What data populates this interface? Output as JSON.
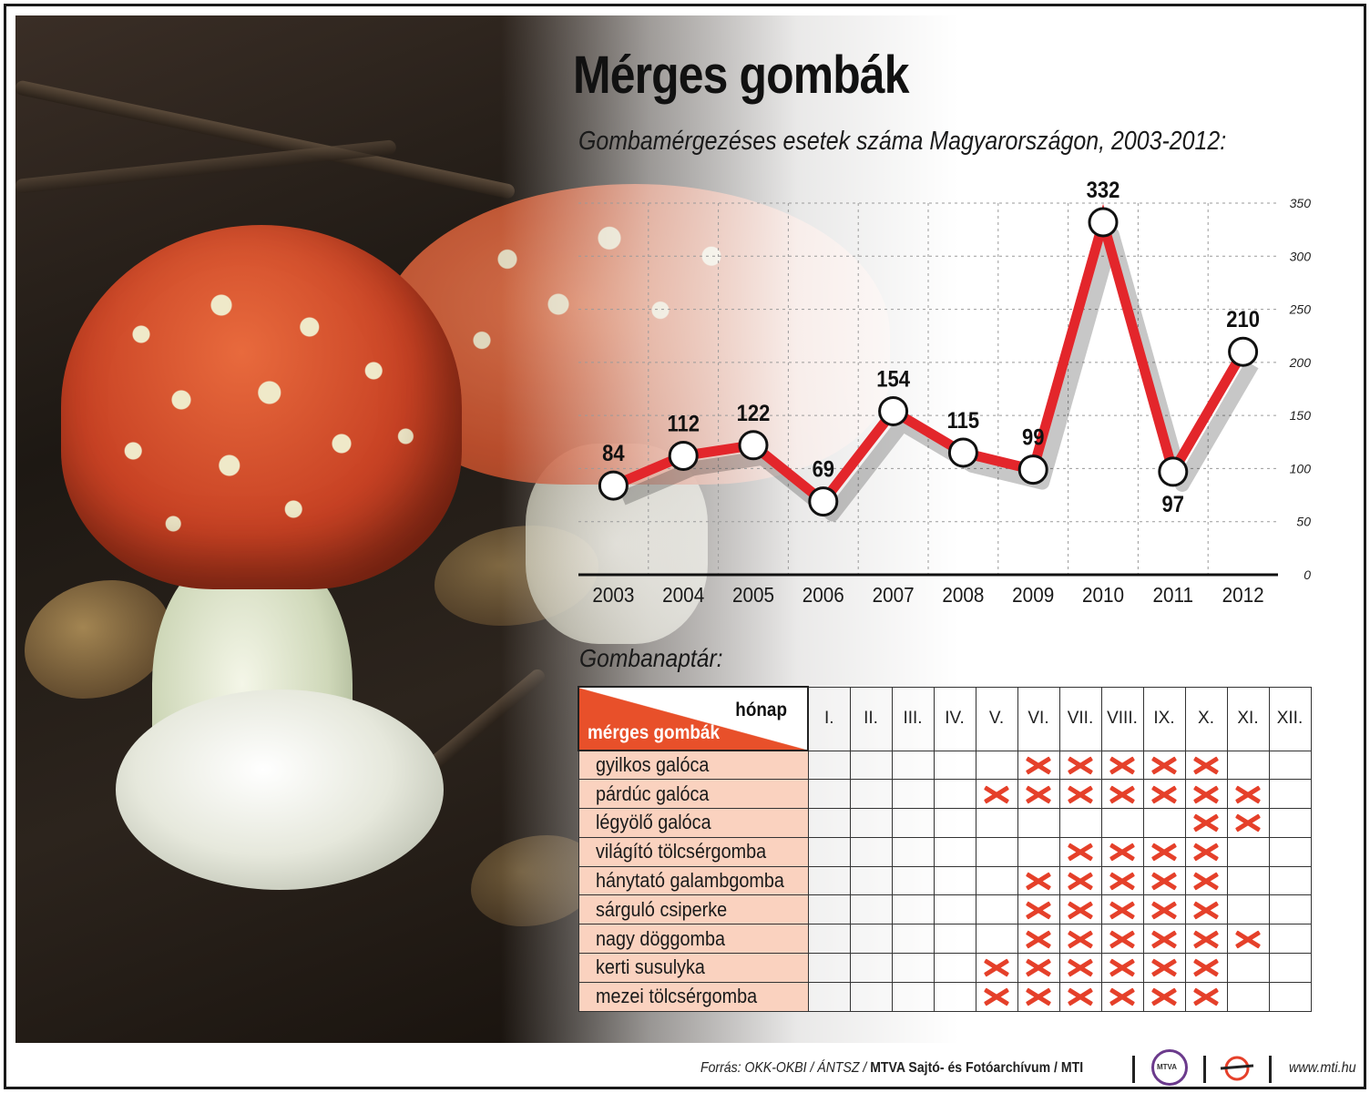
{
  "title": "Mérges gombák",
  "subtitle": "Gombamérgezéses esetek száma Magyarországon, 2003-2012:",
  "chart_data": {
    "type": "line",
    "title": "Gombamérgezéses esetek száma Magyarországon, 2003-2012:",
    "x": [
      "2003",
      "2004",
      "2005",
      "2006",
      "2007",
      "2008",
      "2009",
      "2010",
      "2011",
      "2012"
    ],
    "y": [
      84,
      112,
      122,
      69,
      154,
      115,
      99,
      332,
      97,
      210
    ],
    "data_labels": [
      "84",
      "112",
      "122",
      "69",
      "154",
      "115",
      "99",
      "332",
      "97",
      "210"
    ],
    "ylim": [
      0,
      350
    ],
    "yticks": [
      "0",
      "50",
      "100",
      "150",
      "200",
      "250",
      "300",
      "350"
    ],
    "yaxis_side": "right",
    "grid": true,
    "line_color": "#e3262b",
    "marker": "white circle"
  },
  "calendar": {
    "title": "Gombanaptár:",
    "header_month": "hónap",
    "header_mushrooms": "mérges gombák",
    "months": [
      "I.",
      "II.",
      "III.",
      "IV.",
      "V.",
      "VI.",
      "VII.",
      "VIII.",
      "IX.",
      "X.",
      "XI.",
      "XII."
    ],
    "rows": [
      {
        "name": "gyilkos galóca",
        "months": [
          6,
          7,
          8,
          9,
          10
        ]
      },
      {
        "name": "párdúc galóca",
        "months": [
          5,
          6,
          7,
          8,
          9,
          10,
          11
        ]
      },
      {
        "name": "légyölő galóca",
        "months": [
          10,
          11
        ]
      },
      {
        "name": "világító tölcsérgomba",
        "months": [
          7,
          8,
          9,
          10
        ]
      },
      {
        "name": "hánytató galambgomba",
        "months": [
          6,
          7,
          8,
          9,
          10
        ]
      },
      {
        "name": "sárguló csiperke",
        "months": [
          6,
          7,
          8,
          9,
          10
        ]
      },
      {
        "name": "nagy döggomba",
        "months": [
          6,
          7,
          8,
          9,
          10,
          11
        ]
      },
      {
        "name": "kerti susulyka",
        "months": [
          5,
          6,
          7,
          8,
          9,
          10
        ]
      },
      {
        "name": "mezei tölcsérgomba",
        "months": [
          5,
          6,
          7,
          8,
          9,
          10
        ]
      }
    ],
    "mark_color": "#e5402a",
    "name_bg": "#fad2bf",
    "header_accent": "#e8502a"
  },
  "footer": {
    "source_prefix": "Forrás: OKK-OKBI / ÁNTSZ / ",
    "source_bold": "MTVA Sajtó- és Fotóarchívum / MTI",
    "url": "www.mti.hu"
  }
}
